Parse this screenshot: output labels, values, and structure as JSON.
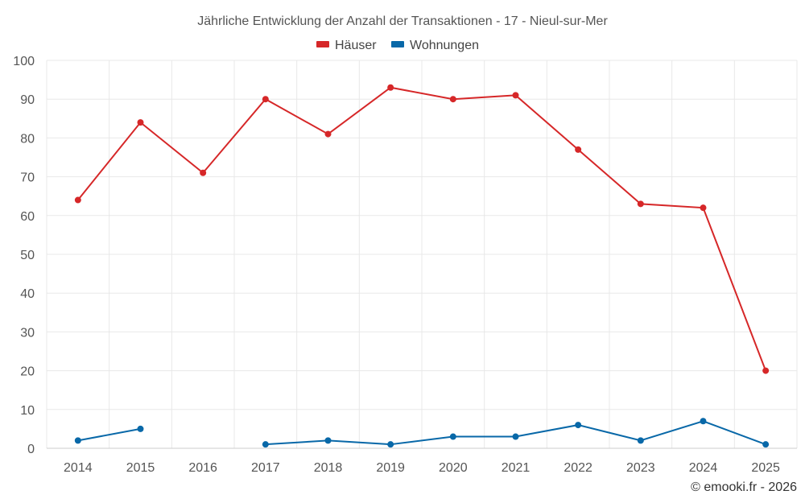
{
  "chart_data": {
    "type": "line",
    "title": "Jährliche Entwicklung der Anzahl der Transaktionen - 17 - Nieul-sur-Mer",
    "categories": [
      "2014",
      "2015",
      "2016",
      "2017",
      "2018",
      "2019",
      "2020",
      "2021",
      "2022",
      "2023",
      "2024",
      "2025"
    ],
    "series": [
      {
        "name": "Häuser",
        "color": "#d62728",
        "values": [
          64,
          84,
          71,
          90,
          81,
          93,
          90,
          91,
          77,
          63,
          62,
          20
        ]
      },
      {
        "name": "Wohnungen",
        "color": "#0868a8",
        "values": [
          2,
          5,
          null,
          1,
          2,
          1,
          3,
          3,
          6,
          2,
          7,
          1
        ]
      }
    ],
    "ylim": [
      0,
      100
    ],
    "yticks": [
      0,
      10,
      20,
      30,
      40,
      50,
      60,
      70,
      80,
      90,
      100
    ],
    "grid": true,
    "legend_position": "top-center"
  },
  "credit": "© emooki.fr - 2026"
}
